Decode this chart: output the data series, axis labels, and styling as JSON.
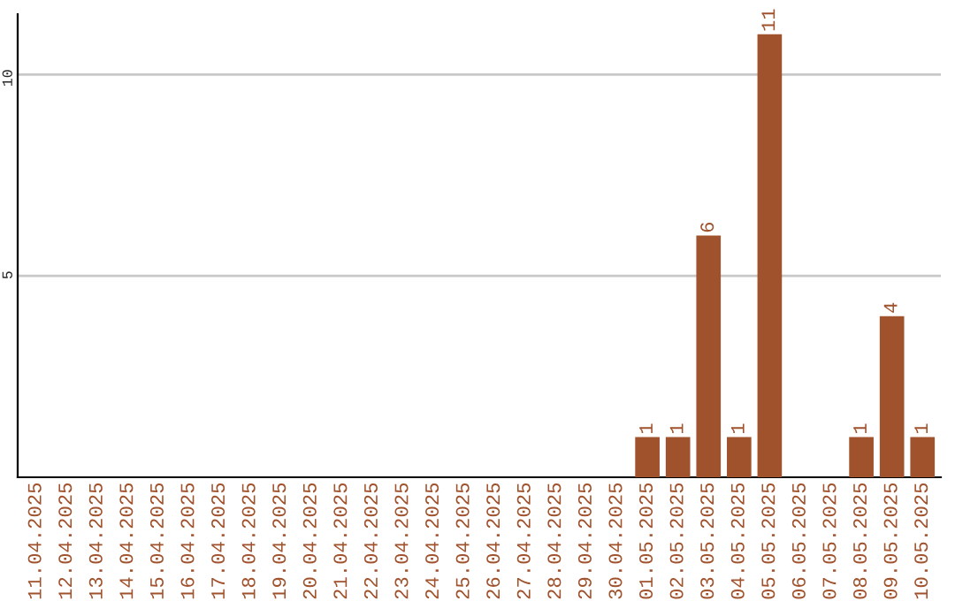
{
  "chart_data": {
    "type": "bar",
    "categories": [
      "11.04.2025",
      "12.04.2025",
      "13.04.2025",
      "14.04.2025",
      "15.04.2025",
      "16.04.2025",
      "17.04.2025",
      "18.04.2025",
      "19.04.2025",
      "20.04.2025",
      "21.04.2025",
      "22.04.2025",
      "23.04.2025",
      "24.04.2025",
      "25.04.2025",
      "26.04.2025",
      "27.04.2025",
      "28.04.2025",
      "29.04.2025",
      "30.04.2025",
      "01.05.2025",
      "02.05.2025",
      "03.05.2025",
      "04.05.2025",
      "05.05.2025",
      "06.05.2025",
      "07.05.2025",
      "08.05.2025",
      "09.05.2025",
      "10.05.2025"
    ],
    "values": [
      0,
      0,
      0,
      0,
      0,
      0,
      0,
      0,
      0,
      0,
      0,
      0,
      0,
      0,
      0,
      0,
      0,
      0,
      0,
      0,
      1,
      1,
      6,
      1,
      11,
      0,
      0,
      1,
      4,
      1
    ],
    "value_labels": [
      null,
      null,
      null,
      null,
      null,
      null,
      null,
      null,
      null,
      null,
      null,
      null,
      null,
      null,
      null,
      null,
      null,
      null,
      null,
      null,
      "1",
      "1",
      "6",
      "1",
      "11",
      null,
      null,
      "1",
      "4",
      "1"
    ],
    "color": "#a0522d",
    "ylim": [
      0,
      11.5
    ],
    "yticks": [
      5,
      10
    ],
    "grid": "y"
  }
}
